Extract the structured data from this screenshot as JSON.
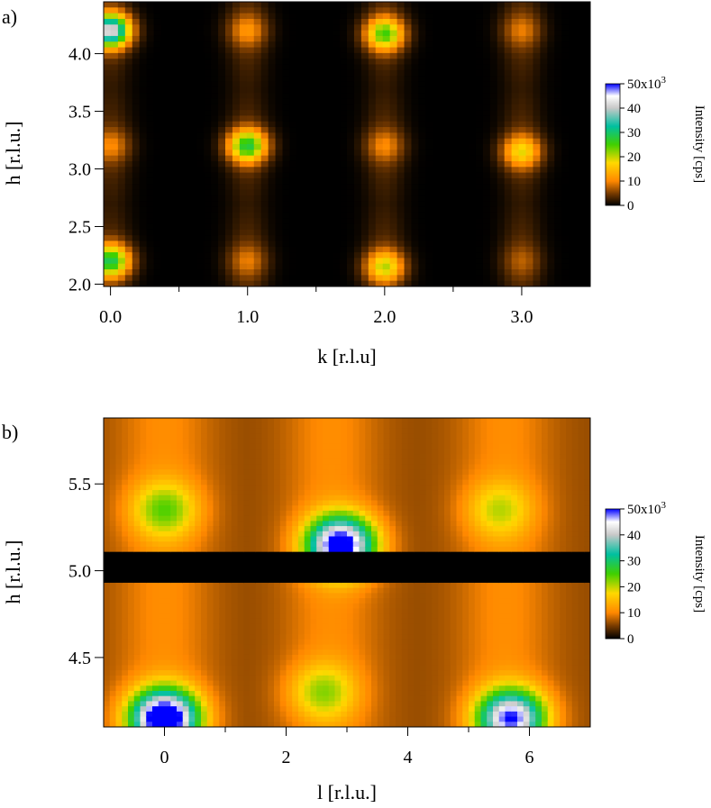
{
  "chart_data": [
    {
      "panel_label": "a)",
      "type": "heatmap",
      "xlabel": "k [r.l.u]",
      "ylabel": "h [r.l.u.]",
      "xlim": [
        -0.05,
        3.5
      ],
      "ylim": [
        1.98,
        4.45
      ],
      "xticks": [
        0.0,
        1.0,
        2.0,
        3.0
      ],
      "xtick_labels": [
        "0.0",
        "1.0",
        "2.0",
        "3.0"
      ],
      "xminor": [
        0.5,
        1.5,
        2.5
      ],
      "yticks": [
        2.0,
        2.5,
        3.0,
        3.5,
        4.0
      ],
      "ytick_labels": [
        "2.0",
        "2.5",
        "3.0",
        "3.5",
        "4.0"
      ],
      "colorbar": {
        "title": "Intensity [cps]",
        "range": [
          0,
          50000
        ],
        "ticks": [
          0,
          10000,
          20000,
          30000,
          40000,
          50000
        ],
        "tick_labels": [
          "0",
          "10",
          "20",
          "30",
          "40",
          "50x10"
        ],
        "exponent": "3"
      },
      "peaks": [
        {
          "k": 0.0,
          "h": 4.2,
          "intensity": 40000
        },
        {
          "k": 1.0,
          "h": 4.2,
          "intensity": 8000
        },
        {
          "k": 2.0,
          "h": 4.17,
          "intensity": 22000
        },
        {
          "k": 3.0,
          "h": 4.2,
          "intensity": 6000
        },
        {
          "k": 0.0,
          "h": 3.2,
          "intensity": 7000
        },
        {
          "k": 1.0,
          "h": 3.2,
          "intensity": 25000
        },
        {
          "k": 2.0,
          "h": 3.2,
          "intensity": 7000
        },
        {
          "k": 3.0,
          "h": 3.15,
          "intensity": 15000
        },
        {
          "k": 0.0,
          "h": 2.2,
          "intensity": 26000
        },
        {
          "k": 1.0,
          "h": 2.2,
          "intensity": 6000
        },
        {
          "k": 2.0,
          "h": 2.15,
          "intensity": 17000
        },
        {
          "k": 3.0,
          "h": 2.2,
          "intensity": 4000
        }
      ],
      "colors": {
        "low": "#000000",
        "mid": "#ff8c00",
        "high": "#ffd700",
        "peak": "#00c060",
        "max": "#0000ff"
      }
    },
    {
      "panel_label": "b)",
      "type": "heatmap",
      "xlabel": "l [r.l.u.]",
      "ylabel": "h [r.l.u.]",
      "xlim": [
        -1.0,
        7.0
      ],
      "ylim": [
        4.1,
        5.88
      ],
      "xticks": [
        0,
        2,
        4,
        6
      ],
      "xtick_labels": [
        "0",
        "2",
        "4",
        "6"
      ],
      "xminor": [
        1,
        3,
        5
      ],
      "yticks": [
        4.5,
        5.0,
        5.5
      ],
      "ytick_labels": [
        "4.5",
        "5.0",
        "5.5"
      ],
      "colorbar": {
        "title": "Intensity [cps]",
        "range": [
          0,
          50000
        ],
        "ticks": [
          0,
          10000,
          20000,
          30000,
          40000,
          50000
        ],
        "tick_labels": [
          "0",
          "10",
          "20",
          "30",
          "40",
          "50x10"
        ],
        "exponent": "3"
      },
      "masked_band": {
        "h": [
          4.94,
          5.1
        ]
      },
      "peaks": [
        {
          "l": 0.0,
          "h": 4.15,
          "intensity": 50000
        },
        {
          "l": 2.9,
          "h": 5.15,
          "intensity": 45000
        },
        {
          "l": 5.7,
          "h": 4.15,
          "intensity": 40000
        },
        {
          "l": 0.0,
          "h": 5.35,
          "intensity": 14000
        },
        {
          "l": 2.6,
          "h": 4.3,
          "intensity": 12000
        },
        {
          "l": 5.5,
          "h": 5.35,
          "intensity": 10000
        }
      ]
    }
  ]
}
